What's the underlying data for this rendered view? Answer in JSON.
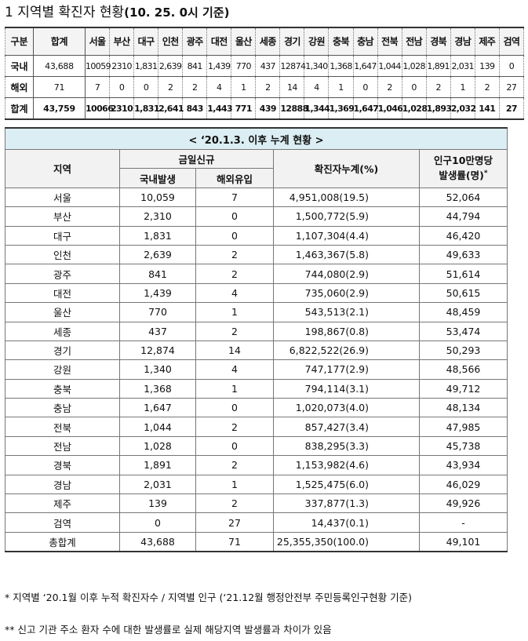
{
  "title": {
    "prefix": "1  지역별 확진자 현황",
    "date": "(10. 25. 0시 기준)"
  },
  "summary": {
    "header": [
      "구분",
      "합계",
      "서울",
      "부산",
      "대구",
      "인천",
      "광주",
      "대전",
      "울산",
      "세종",
      "경기",
      "강원",
      "충북",
      "충남",
      "전북",
      "전남",
      "경북",
      "경남",
      "제주",
      "검역"
    ],
    "rows": [
      {
        "label": "국내",
        "total": "43,688",
        "values": [
          "10059",
          "2310",
          "1,831",
          "2,639",
          "841",
          "1,439",
          "770",
          "437",
          "12874",
          "1,340",
          "1,368",
          "1,647",
          "1,044",
          "1,028",
          "1,891",
          "2,031",
          "139",
          "0"
        ]
      },
      {
        "label": "해외",
        "total": "71",
        "values": [
          "7",
          "0",
          "0",
          "2",
          "2",
          "4",
          "1",
          "2",
          "14",
          "4",
          "1",
          "0",
          "2",
          "0",
          "2",
          "1",
          "2",
          "27"
        ]
      },
      {
        "label": "합계",
        "total": "43,759",
        "values": [
          "10066",
          "2310",
          "1,831",
          "2,641",
          "843",
          "1,443",
          "771",
          "439",
          "12888",
          "1,344",
          "1,369",
          "1,647",
          "1,046",
          "1,028",
          "1,893",
          "2,032",
          "141",
          "27"
        ]
      }
    ]
  },
  "detail": {
    "caption": "< ‘20.1.3. 이후 누계 현황 >",
    "col_region": "지역",
    "col_today": "금일신규",
    "col_domestic": "국내발생",
    "col_overseas": "해외유입",
    "col_cumulative": "확진자누계(%)",
    "col_rate_line1": "인구10만명당",
    "col_rate_line2": "발생률(명)",
    "col_rate_mark": "*",
    "rows": [
      [
        "서울",
        "10,059",
        "7",
        "4,951,008(19.5)",
        "52,064"
      ],
      [
        "부산",
        "2,310",
        "0",
        "1,500,772(5.9)",
        "44,794"
      ],
      [
        "대구",
        "1,831",
        "0",
        "1,107,304(4.4)",
        "46,420"
      ],
      [
        "인천",
        "2,639",
        "2",
        "1,463,367(5.8)",
        "49,633"
      ],
      [
        "광주",
        "841",
        "2",
        "744,080(2.9)",
        "51,614"
      ],
      [
        "대전",
        "1,439",
        "4",
        "735,060(2.9)",
        "50,615"
      ],
      [
        "울산",
        "770",
        "1",
        "543,513(2.1)",
        "48,459"
      ],
      [
        "세종",
        "437",
        "2",
        "198,867(0.8)",
        "53,474"
      ],
      [
        "경기",
        "12,874",
        "14",
        "6,822,522(26.9)",
        "50,293"
      ],
      [
        "강원",
        "1,340",
        "4",
        "747,177(2.9)",
        "48,566"
      ],
      [
        "충북",
        "1,368",
        "1",
        "794,114(3.1)",
        "49,712"
      ],
      [
        "충남",
        "1,647",
        "0",
        "1,020,073(4.0)",
        "48,134"
      ],
      [
        "전북",
        "1,044",
        "2",
        "857,427(3.4)",
        "47,985"
      ],
      [
        "전남",
        "1,028",
        "0",
        "838,295(3.3)",
        "45,738"
      ],
      [
        "경북",
        "1,891",
        "2",
        "1,153,982(4.6)",
        "43,934"
      ],
      [
        "경남",
        "2,031",
        "1",
        "1,525,475(6.0)",
        "46,029"
      ],
      [
        "제주",
        "139",
        "2",
        "337,877(1.3)",
        "49,926"
      ],
      [
        "검역",
        "0",
        "27",
        "14,437(0.1)",
        "-"
      ],
      [
        "총합계",
        "43,688",
        "71",
        "25,355,350(100.0)",
        "49,101"
      ]
    ]
  },
  "notes": {
    "note1": "* 지역별 ‘20.1월 이후 누적 확진자수 / 지역별 인구 (‘21.12월 행정안전부 주민등록인구현황 기준)",
    "note2": "** 신고 기관 주소 환자 수에 대한 발생률로 실제 해당지역 발생률과 차이가 있음"
  }
}
